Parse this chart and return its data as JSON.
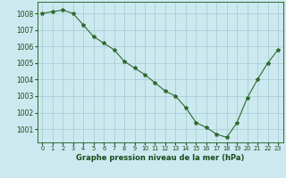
{
  "x": [
    0,
    1,
    2,
    3,
    4,
    5,
    6,
    7,
    8,
    9,
    10,
    11,
    12,
    13,
    14,
    15,
    16,
    17,
    18,
    19,
    20,
    21,
    22,
    23
  ],
  "y": [
    1008.0,
    1008.1,
    1008.2,
    1008.0,
    1007.3,
    1006.6,
    1006.2,
    1005.8,
    1005.1,
    1004.7,
    1004.3,
    1003.8,
    1003.3,
    1003.0,
    1002.3,
    1001.4,
    1001.1,
    1000.7,
    1000.5,
    1001.4,
    1002.9,
    1004.0,
    1005.0,
    1005.8
  ],
  "line_color": "#2d6a2d",
  "marker": "*",
  "marker_size": 3.0,
  "bg_color": "#cce9f0",
  "grid_color": "#aacdd6",
  "ylabel_ticks": [
    1001,
    1002,
    1003,
    1004,
    1005,
    1006,
    1007,
    1008
  ],
  "xlabel": "Graphe pression niveau de la mer (hPa)",
  "ylim": [
    1000.2,
    1008.7
  ],
  "xlim": [
    -0.5,
    23.5
  ],
  "title_color": "#1a4a1a",
  "tick_label_color": "#1a4a1a",
  "xlabel_fontsize": 6.0,
  "ytick_fontsize": 5.5,
  "xtick_fontsize": 4.8
}
